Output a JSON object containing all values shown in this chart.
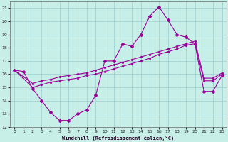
{
  "xlabel": "Windchill (Refroidissement éolien,°C)",
  "bg_color": "#c8eee8",
  "grid_color": "#99cccc",
  "line_color": "#990099",
  "xlim_min": -0.5,
  "xlim_max": 23.5,
  "ylim_min": 12,
  "ylim_max": 21.5,
  "yticks": [
    12,
    13,
    14,
    15,
    16,
    17,
    18,
    19,
    20,
    21
  ],
  "xticks": [
    0,
    1,
    2,
    3,
    4,
    5,
    6,
    7,
    8,
    9,
    10,
    11,
    12,
    13,
    14,
    15,
    16,
    17,
    18,
    19,
    20,
    21,
    22,
    23
  ],
  "s1_x": [
    0,
    1,
    2,
    3,
    4,
    5,
    6,
    7,
    8,
    9,
    10,
    11,
    12,
    13,
    14,
    15,
    16,
    17,
    18,
    19,
    20,
    21,
    22,
    23
  ],
  "s1_y": [
    16.3,
    16.2,
    14.9,
    14.0,
    13.1,
    12.5,
    12.5,
    13.0,
    13.3,
    14.4,
    17.0,
    17.0,
    18.3,
    18.1,
    19.0,
    20.4,
    21.1,
    20.1,
    19.0,
    18.8,
    18.3,
    14.7,
    14.7,
    15.9
  ],
  "s2_x": [
    0,
    2,
    3,
    4,
    5,
    6,
    7,
    8,
    9,
    10,
    11,
    12,
    13,
    14,
    15,
    16,
    17,
    18,
    19,
    20,
    21,
    22,
    23
  ],
  "s2_y": [
    16.3,
    15.0,
    15.2,
    15.4,
    15.5,
    15.6,
    15.7,
    15.9,
    16.0,
    16.2,
    16.4,
    16.6,
    16.8,
    17.0,
    17.2,
    17.5,
    17.7,
    17.9,
    18.2,
    18.3,
    15.5,
    15.5,
    16.0
  ],
  "s3_x": [
    0,
    2,
    3,
    4,
    5,
    6,
    7,
    8,
    9,
    10,
    11,
    12,
    13,
    14,
    15,
    16,
    17,
    18,
    19,
    20,
    21,
    22,
    23
  ],
  "s3_y": [
    16.3,
    15.3,
    15.5,
    15.6,
    15.8,
    15.9,
    16.0,
    16.1,
    16.3,
    16.5,
    16.7,
    16.9,
    17.1,
    17.3,
    17.5,
    17.7,
    17.9,
    18.1,
    18.3,
    18.5,
    15.7,
    15.7,
    16.1
  ]
}
